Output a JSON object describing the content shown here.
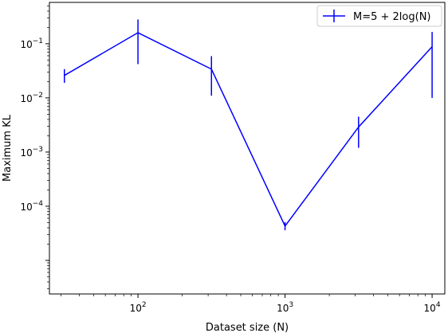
{
  "chart_data": {
    "type": "line",
    "title": "",
    "xlabel": "Dataset size (N)",
    "ylabel": "Maximum KL",
    "xscale": "log",
    "yscale": "log",
    "xlim": [
      25,
      12200
    ],
    "ylim": [
      2.4e-06,
      0.58
    ],
    "xticks": [
      {
        "value": 100,
        "base": "10",
        "exp": "2"
      },
      {
        "value": 1000,
        "base": "10",
        "exp": "3"
      },
      {
        "value": 10000,
        "base": "10",
        "exp": "4"
      }
    ],
    "yticks": [
      {
        "value": 0.1,
        "base": "10",
        "exp": "−1"
      },
      {
        "value": 0.01,
        "base": "10",
        "exp": "−2"
      },
      {
        "value": 0.001,
        "base": "10",
        "exp": "−3"
      },
      {
        "value": 0.0001,
        "base": "10",
        "exp": "−4"
      }
    ],
    "grid": false,
    "legend_position": "top-right",
    "series": [
      {
        "name": "M=5 + 2log(N)",
        "color": "#0000ff",
        "points": [
          {
            "x": 31.6,
            "y": 0.026,
            "err_low": 0.019,
            "err_high": 0.034
          },
          {
            "x": 100,
            "y": 0.16,
            "err_low": 0.042,
            "err_high": 0.28
          },
          {
            "x": 316,
            "y": 0.034,
            "err_low": 0.011,
            "err_high": 0.059
          },
          {
            "x": 1000,
            "y": 4.3e-05,
            "err_low": 3.6e-05,
            "err_high": 5.1e-05
          },
          {
            "x": 3162,
            "y": 0.0029,
            "err_low": 0.0012,
            "err_high": 0.0045
          },
          {
            "x": 10000,
            "y": 0.088,
            "err_low": 0.01,
            "err_high": 0.165
          }
        ]
      }
    ]
  }
}
